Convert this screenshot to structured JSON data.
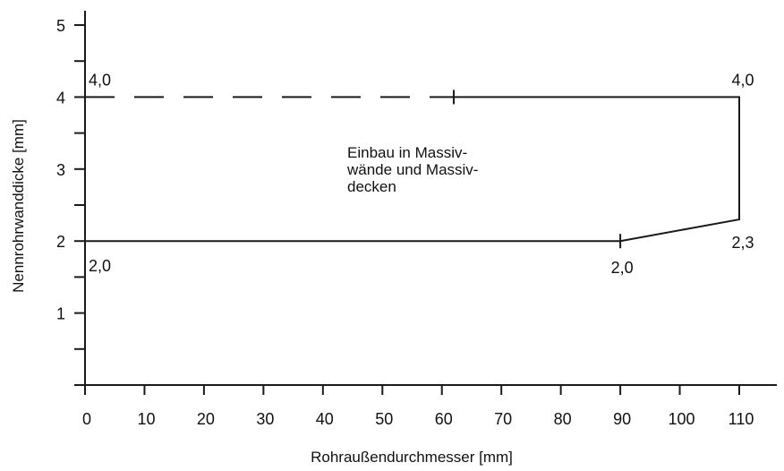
{
  "chart_data": {
    "type": "line",
    "title": "",
    "xlabel": "Rohraußendurchmesser [mm]",
    "ylabel": "Nennrohrwanddicke [mm]",
    "xlim": [
      0,
      110
    ],
    "ylim": [
      0,
      5
    ],
    "x_ticks": [
      0,
      10,
      20,
      30,
      40,
      50,
      60,
      70,
      80,
      90,
      100,
      110
    ],
    "x_tick_labels": [
      "0",
      "10",
      "20",
      "30",
      "40",
      "50",
      "60",
      "70",
      "80",
      "90",
      "100",
      "110"
    ],
    "y_ticks": [
      0,
      0.5,
      1,
      1.5,
      2,
      2.5,
      3,
      3.5,
      4,
      4.5,
      5
    ],
    "y_tick_labels": [
      "1",
      "2",
      "3",
      "4",
      "5"
    ],
    "y_labeled_ticks": [
      1,
      2,
      3,
      4,
      5
    ],
    "grid": false,
    "series": [
      {
        "style": "dashed",
        "points": [
          [
            0,
            4.0
          ],
          [
            62,
            4.0
          ]
        ]
      },
      {
        "style": "solid",
        "points": [
          [
            62,
            4.0
          ],
          [
            110,
            4.0
          ],
          [
            110,
            2.3
          ],
          [
            90,
            2.0
          ],
          [
            0,
            2.0
          ]
        ]
      }
    ],
    "tick_marks_on_curve": [
      [
        62,
        4.0
      ],
      [
        90,
        2.0
      ]
    ],
    "point_labels": [
      {
        "text": "4,0",
        "x": 0,
        "y": 4.0
      },
      {
        "text": "4,0",
        "x": 110,
        "y": 4.0
      },
      {
        "text": "2,0",
        "x": 0,
        "y": 2.0
      },
      {
        "text": "2,0",
        "x": 90,
        "y": 2.0
      },
      {
        "text": "2,3",
        "x": 110,
        "y": 2.3
      }
    ],
    "annotation": [
      "Einbau in Massiv-",
      "wände und Massiv-",
      "decken"
    ]
  }
}
